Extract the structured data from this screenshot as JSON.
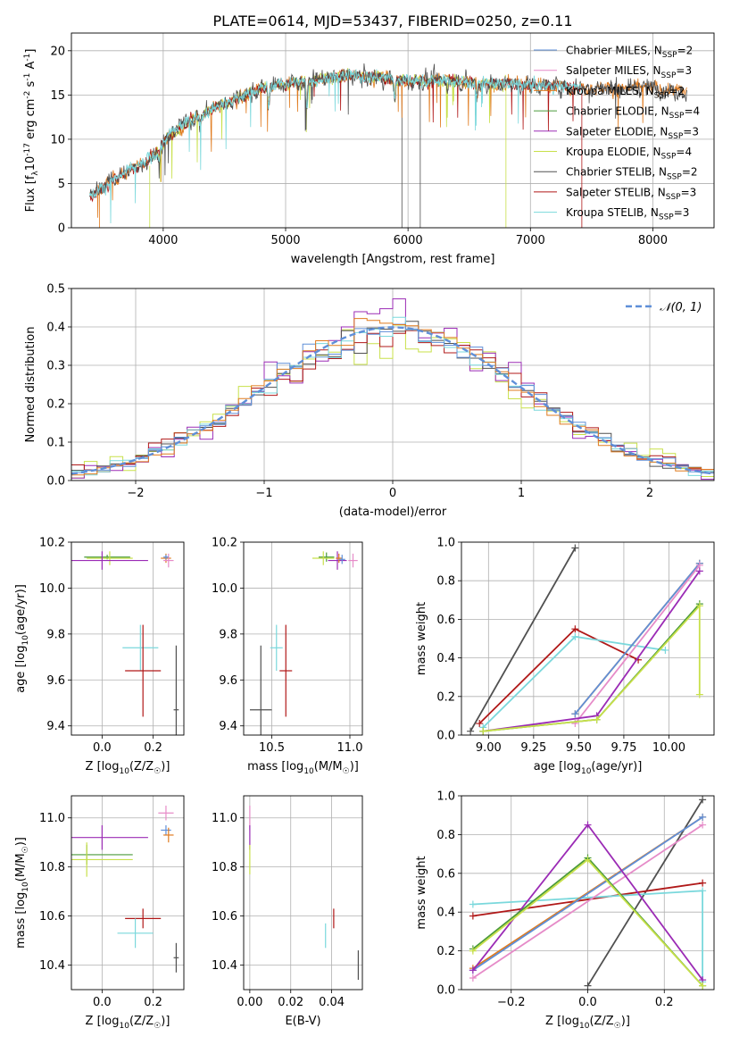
{
  "figure": {
    "title": "PLATE=0614, MJD=53437, FIBERID=0250, z=0.11"
  },
  "colors": {
    "Chabrier MILES": "#5f8fd8",
    "Salpeter MILES": "#e68bc8",
    "Kroupa MILES": "#e07b1f",
    "Chabrier ELODIE": "#4a9a3a",
    "Salpeter ELODIE": "#9b2bb5",
    "Kroupa ELODIE": "#c8e04a",
    "Chabrier STELIB": "#505050",
    "Salpeter STELIB": "#b01818",
    "Kroupa STELIB": "#7ad8dc",
    "normal": "#5f8fd8"
  },
  "chart_data": [
    {
      "id": "spectrum",
      "type": "line",
      "xlabel": "wavelength [Angstrom, rest frame]",
      "ylabel": "Flux [f$_\\lambda$10$^{-17}$ erg cm$^{-2}$ s$^{-1}$ A$^{-1}$]",
      "xlim": [
        3250,
        8500
      ],
      "ylim": [
        0,
        22
      ],
      "xticks": [
        4000,
        5000,
        6000,
        7000,
        8000
      ],
      "yticks": [
        0,
        5,
        10,
        15,
        20
      ],
      "grid": true,
      "legend_position": "right",
      "legend": [
        {
          "label": "Chabrier MILES, N$_{SSP}$=2",
          "model": "Chabrier MILES"
        },
        {
          "label": "Salpeter MILES, N$_{SSP}$=3",
          "model": "Salpeter MILES"
        },
        {
          "label": "Kroupa MILES, N$_{SSP}$=2",
          "model": "Kroupa MILES"
        },
        {
          "label": "Chabrier ELODIE, N$_{SSP}$=4",
          "model": "Chabrier ELODIE"
        },
        {
          "label": "Salpeter ELODIE, N$_{SSP}$=3",
          "model": "Salpeter ELODIE"
        },
        {
          "label": "Kroupa ELODIE, N$_{SSP}$=4",
          "model": "Kroupa ELODIE"
        },
        {
          "label": "Chabrier STELIB, N$_{SSP}$=2",
          "model": "Chabrier STELIB"
        },
        {
          "label": "Salpeter STELIB, N$_{SSP}$=3",
          "model": "Salpeter STELIB"
        },
        {
          "label": "Kroupa STELIB, N$_{SSP}$=3",
          "model": "Kroupa STELIB"
        }
      ],
      "continuum": [
        [
          3400,
          3.5
        ],
        [
          3600,
          5.5
        ],
        [
          3800,
          7.0
        ],
        [
          3950,
          8.5
        ],
        [
          4050,
          10.5
        ],
        [
          4200,
          12.0
        ],
        [
          4400,
          13.5
        ],
        [
          4600,
          14.5
        ],
        [
          4800,
          15.8
        ],
        [
          5000,
          16.3
        ],
        [
          5200,
          16.6
        ],
        [
          5500,
          17.2
        ],
        [
          5800,
          17.0
        ],
        [
          6000,
          16.6
        ],
        [
          6300,
          16.6
        ],
        [
          6600,
          16.3
        ],
        [
          7000,
          16.2
        ],
        [
          7500,
          15.8
        ],
        [
          8000,
          15.8
        ],
        [
          8280,
          15.3
        ]
      ],
      "absorption": [
        [
          3933,
          8.2
        ],
        [
          3968,
          7.6
        ],
        [
          4102,
          11.0
        ],
        [
          4304,
          11.6
        ],
        [
          4861,
          13.8
        ],
        [
          5175,
          13.6
        ],
        [
          5893,
          14.4
        ],
        [
          6563,
          15.1
        ]
      ],
      "artifacts": [
        {
          "x": 5950,
          "y0": 0,
          "y1": 16.5,
          "model": "Chabrier STELIB"
        },
        {
          "x": 6100,
          "y0": 0,
          "y1": 16.5,
          "model": "Chabrier STELIB"
        },
        {
          "x": 6800,
          "y0": 0,
          "y1": 16.0,
          "model": "Kroupa ELODIE"
        },
        {
          "x": 7420,
          "y0": 0,
          "y1": 15.5,
          "model": "Salpeter STELIB"
        },
        {
          "x": 3890,
          "y0": 0,
          "y1": 7.0,
          "model": "Kroupa ELODIE"
        },
        {
          "x": 3480,
          "y0": 0,
          "y1": 4.5,
          "model": "Kroupa MILES"
        }
      ],
      "series": [
        {
          "model": "Kroupa MILES",
          "xrange": [
            3400,
            8280
          ],
          "noise": 1.0
        },
        {
          "model": "Kroupa ELODIE",
          "xrange": [
            3900,
            6800
          ],
          "noise": 0.9
        },
        {
          "model": "Salpeter STELIB",
          "xrange": [
            3400,
            7420
          ],
          "noise": 0.8
        },
        {
          "model": "Chabrier STELIB",
          "xrange": [
            3400,
            8280
          ],
          "noise": 1.3
        },
        {
          "model": "Kroupa STELIB",
          "xrange": [
            3400,
            7420
          ],
          "noise": 0.9
        }
      ]
    },
    {
      "id": "residuals",
      "type": "bar",
      "xlabel": "(data-model)/error",
      "ylabel": "Normed distribution",
      "xlim": [
        -2.5,
        2.5
      ],
      "ylim": [
        0,
        0.5
      ],
      "xticks": [
        -2,
        -1,
        0,
        1,
        2
      ],
      "yticks": [
        0.0,
        0.1,
        0.2,
        0.3,
        0.4,
        0.5
      ],
      "grid": true,
      "legend_position": "top-right",
      "legend": [
        {
          "label": "$\\mathcal{N}(0, 1)$",
          "model": "normal"
        }
      ],
      "bins": {
        "start": -2.5,
        "width": 0.1,
        "count": 50
      },
      "normal_curve": {
        "mean": 0,
        "sigma": 1
      },
      "series": [
        {
          "model": "Kroupa ELODIE",
          "spread": 1.05,
          "jitter": 0.04
        },
        {
          "model": "Salpeter ELODIE",
          "spread": 0.98,
          "jitter": 0.035
        },
        {
          "model": "Chabrier STELIB",
          "spread": 1.02,
          "jitter": 0.025
        },
        {
          "model": "Salpeter STELIB",
          "spread": 1.06,
          "jitter": 0.03
        },
        {
          "model": "Kroupa STELIB",
          "spread": 1.0,
          "jitter": 0.03
        },
        {
          "model": "Chabrier MILES",
          "spread": 1.03,
          "jitter": 0.025
        },
        {
          "model": "Kroupa MILES",
          "spread": 0.99,
          "jitter": 0.025
        }
      ]
    },
    {
      "id": "age-vs-z",
      "type": "scatter",
      "xlabel": "Z [log$_{10}$(Z/Z$_\\odot$)]",
      "ylabel": "age  [log$_{10}$(age/yr)]",
      "xlim": [
        -0.12,
        0.32
      ],
      "ylim": [
        9.36,
        10.2
      ],
      "xticks": [
        0.0,
        0.2
      ],
      "xticklabels": [
        "0.0",
        "0.2"
      ],
      "yticks": [
        9.4,
        9.6,
        9.8,
        10.0,
        10.2
      ],
      "yticklabels": [
        "9.4",
        "9.6",
        "9.8",
        "10.0",
        "10.2"
      ],
      "grid": true,
      "points": [
        {
          "model": "Chabrier ELODIE",
          "x": 0.02,
          "y": 10.135,
          "xerr": 0.09,
          "yerr": 0.01
        },
        {
          "model": "Kroupa ELODIE",
          "x": 0.03,
          "y": 10.13,
          "xerr": 0.09,
          "yerr": 0.03
        },
        {
          "model": "Salpeter ELODIE",
          "x": 0.0,
          "y": 10.12,
          "xerr": 0.18,
          "yerr": 0.04
        },
        {
          "model": "Kroupa MILES",
          "x": 0.25,
          "y": 10.13,
          "xerr": 0.02,
          "yerr": 0.02
        },
        {
          "model": "Salpeter MILES",
          "x": 0.26,
          "y": 10.12,
          "xerr": 0.02,
          "yerr": 0.03
        },
        {
          "model": "Chabrier MILES",
          "x": 0.25,
          "y": 10.135,
          "xerr": 0.01,
          "yerr": 0.01
        },
        {
          "model": "Kroupa STELIB",
          "x": 0.15,
          "y": 9.74,
          "xerr": 0.07,
          "yerr": 0.1
        },
        {
          "model": "Salpeter STELIB",
          "x": 0.16,
          "y": 9.64,
          "xerr": 0.07,
          "yerr": 0.2
        },
        {
          "model": "Chabrier STELIB",
          "x": 0.29,
          "y": 9.47,
          "xerr": 0.01,
          "yerr": 0.28
        }
      ]
    },
    {
      "id": "age-vs-mass",
      "type": "scatter",
      "xlabel": "mass [log$_{10}$(M/M$_\\odot$)]",
      "ylabel": "",
      "xlim": [
        10.32,
        11.08
      ],
      "ylim": [
        9.36,
        10.2
      ],
      "xticks": [
        10.5,
        11.0
      ],
      "xticklabels": [
        "10.5",
        "11.0"
      ],
      "yticks": [
        9.4,
        9.6,
        9.8,
        10.0,
        10.2
      ],
      "yticklabels": [
        "9.4",
        "9.6",
        "9.8",
        "10.0",
        "10.2"
      ],
      "grid": true,
      "points": [
        {
          "model": "Chabrier ELODIE",
          "x": 10.85,
          "y": 10.135,
          "xerr": 0.05,
          "yerr": 0.02
        },
        {
          "model": "Kroupa ELODIE",
          "x": 10.83,
          "y": 10.13,
          "xerr": 0.07,
          "yerr": 0.03
        },
        {
          "model": "Salpeter ELODIE",
          "x": 10.92,
          "y": 10.12,
          "xerr": 0.06,
          "yerr": 0.04
        },
        {
          "model": "Kroupa MILES",
          "x": 10.93,
          "y": 10.13,
          "xerr": 0.02,
          "yerr": 0.02
        },
        {
          "model": "Chabrier MILES",
          "x": 10.95,
          "y": 10.125,
          "xerr": 0.02,
          "yerr": 0.02
        },
        {
          "model": "Salpeter MILES",
          "x": 11.02,
          "y": 10.12,
          "xerr": 0.03,
          "yerr": 0.03
        },
        {
          "model": "Kroupa STELIB",
          "x": 10.53,
          "y": 9.74,
          "xerr": 0.04,
          "yerr": 0.1
        },
        {
          "model": "Salpeter STELIB",
          "x": 10.59,
          "y": 9.64,
          "xerr": 0.04,
          "yerr": 0.2
        },
        {
          "model": "Chabrier STELIB",
          "x": 10.43,
          "y": 9.47,
          "xerr": 0.07,
          "yerr": 0.28
        }
      ]
    },
    {
      "id": "weight-vs-age",
      "type": "line",
      "xlabel": "age  [log$_{10}$(age/yr)]",
      "ylabel": "mass weight",
      "xlim": [
        8.85,
        10.25
      ],
      "ylim": [
        0,
        1.0
      ],
      "xticks": [
        9.0,
        9.25,
        9.5,
        9.75,
        10.0
      ],
      "xticklabels": [
        "9.00",
        "9.25",
        "9.50",
        "9.75",
        "10.00"
      ],
      "yticks": [
        0,
        0.2,
        0.4,
        0.6,
        0.8,
        1.0
      ],
      "yticklabels": [
        "0.0",
        "0.2",
        "0.4",
        "0.6",
        "0.8",
        "1.0"
      ],
      "grid": true,
      "series": [
        {
          "model": "Chabrier STELIB",
          "points": [
            [
              8.9,
              0.02
            ],
            [
              9.48,
              0.97
            ]
          ]
        },
        {
          "model": "Salpeter STELIB",
          "points": [
            [
              8.95,
              0.06
            ],
            [
              9.48,
              0.55
            ],
            [
              9.83,
              0.39
            ]
          ]
        },
        {
          "model": "Kroupa STELIB",
          "points": [
            [
              8.97,
              0.04
            ],
            [
              9.48,
              0.51
            ],
            [
              9.98,
              0.44
            ]
          ]
        },
        {
          "model": "Kroupa MILES",
          "points": [
            [
              9.48,
              0.11
            ],
            [
              10.17,
              0.89
            ]
          ]
        },
        {
          "model": "Chabrier MILES",
          "points": [
            [
              9.48,
              0.11
            ],
            [
              10.17,
              0.89
            ]
          ]
        },
        {
          "model": "Salpeter MILES",
          "points": [
            [
              9.48,
              0.06
            ],
            [
              10.17,
              0.88
            ]
          ]
        },
        {
          "model": "Salpeter ELODIE",
          "points": [
            [
              8.97,
              0.02
            ],
            [
              9.6,
              0.1
            ],
            [
              10.17,
              0.85
            ]
          ]
        },
        {
          "model": "Chabrier ELODIE",
          "points": [
            [
              8.97,
              0.02
            ],
            [
              9.6,
              0.08
            ],
            [
              10.17,
              0.68
            ]
          ]
        },
        {
          "model": "Kroupa ELODIE",
          "points": [
            [
              8.97,
              0.02
            ],
            [
              9.6,
              0.08
            ],
            [
              10.17,
              0.67
            ],
            [
              10.17,
              0.21
            ]
          ]
        }
      ]
    },
    {
      "id": "mass-vs-z",
      "type": "scatter",
      "xlabel": "Z [log$_{10}$(Z/Z$_\\odot$)]",
      "ylabel": "mass [log$_{10}$(M/M$_\\odot$)]",
      "xlim": [
        -0.12,
        0.32
      ],
      "ylim": [
        10.3,
        11.09
      ],
      "xticks": [
        0.0,
        0.2
      ],
      "xticklabels": [
        "0.0",
        "0.2"
      ],
      "yticks": [
        10.4,
        10.6,
        10.8,
        11.0
      ],
      "yticklabels": [
        "10.4",
        "10.6",
        "10.8",
        "11.0"
      ],
      "grid": true,
      "points": [
        {
          "model": "Salpeter ELODIE",
          "x": 0.0,
          "y": 10.92,
          "xerr": 0.18,
          "yerr": 0.05
        },
        {
          "model": "Chabrier ELODIE",
          "x": -0.06,
          "y": 10.85,
          "xerr": 0.18,
          "yerr": 0.04
        },
        {
          "model": "Kroupa ELODIE",
          "x": -0.06,
          "y": 10.83,
          "xerr": 0.18,
          "yerr": 0.07
        },
        {
          "model": "Salpeter MILES",
          "x": 0.25,
          "y": 11.02,
          "xerr": 0.03,
          "yerr": 0.03
        },
        {
          "model": "Chabrier MILES",
          "x": 0.25,
          "y": 10.95,
          "xerr": 0.02,
          "yerr": 0.02
        },
        {
          "model": "Kroupa MILES",
          "x": 0.26,
          "y": 10.93,
          "xerr": 0.02,
          "yerr": 0.03
        },
        {
          "model": "Salpeter STELIB",
          "x": 0.16,
          "y": 10.59,
          "xerr": 0.07,
          "yerr": 0.04
        },
        {
          "model": "Kroupa STELIB",
          "x": 0.13,
          "y": 10.53,
          "xerr": 0.07,
          "yerr": 0.06
        },
        {
          "model": "Chabrier STELIB",
          "x": 0.29,
          "y": 10.43,
          "xerr": 0.01,
          "yerr": 0.06
        }
      ]
    },
    {
      "id": "mass-vs-ebv",
      "type": "scatter",
      "xlabel": "E(B-V)",
      "ylabel": "",
      "xlim": [
        -0.003,
        0.055
      ],
      "ylim": [
        10.3,
        11.09
      ],
      "xticks": [
        0.0,
        0.02,
        0.04
      ],
      "xticklabels": [
        "0.00",
        "0.02",
        "0.04"
      ],
      "yticks": [
        10.4,
        10.6,
        10.8,
        11.0
      ],
      "yticklabels": [
        "10.4",
        "10.6",
        "10.8",
        "11.0"
      ],
      "grid": true,
      "points": [
        {
          "model": "Salpeter MILES",
          "x": 0.0,
          "y": 11.0,
          "xerr": 0.0,
          "yerr": 0.05
        },
        {
          "model": "Salpeter ELODIE",
          "x": 0.0,
          "y": 10.92,
          "xerr": 0.0,
          "yerr": 0.05
        },
        {
          "model": "Kroupa ELODIE",
          "x": 0.0,
          "y": 10.83,
          "xerr": 0.0,
          "yerr": 0.06
        },
        {
          "model": "Kroupa STELIB",
          "x": 0.037,
          "y": 10.52,
          "xerr": 0.0,
          "yerr": 0.05
        },
        {
          "model": "Salpeter STELIB",
          "x": 0.041,
          "y": 10.59,
          "xerr": 0.0,
          "yerr": 0.04
        },
        {
          "model": "Chabrier STELIB",
          "x": 0.053,
          "y": 10.4,
          "xerr": 0.0,
          "yerr": 0.06
        }
      ]
    },
    {
      "id": "weight-vs-z",
      "type": "line",
      "xlabel": "Z [log$_{10}$(Z/Z$_\\odot$)]",
      "ylabel": "mass weight",
      "xlim": [
        -0.33,
        0.33
      ],
      "ylim": [
        0,
        1.0
      ],
      "xticks": [
        -0.2,
        0.0,
        0.2
      ],
      "xticklabels": [
        "−0.2",
        "0.0",
        "0.2"
      ],
      "yticks": [
        0,
        0.2,
        0.4,
        0.6,
        0.8,
        1.0
      ],
      "yticklabels": [
        "0.0",
        "0.2",
        "0.4",
        "0.6",
        "0.8",
        "1.0"
      ],
      "grid": true,
      "series": [
        {
          "model": "Chabrier STELIB",
          "points": [
            [
              0.0,
              0.02
            ],
            [
              0.3,
              0.98
            ]
          ]
        },
        {
          "model": "Salpeter STELIB",
          "points": [
            [
              -0.3,
              0.38
            ],
            [
              0.3,
              0.55
            ]
          ]
        },
        {
          "model": "Kroupa STELIB",
          "points": [
            [
              -0.3,
              0.44
            ],
            [
              0.3,
              0.51
            ],
            [
              0.3,
              0.04
            ]
          ]
        },
        {
          "model": "Kroupa MILES",
          "points": [
            [
              -0.3,
              0.11
            ],
            [
              0.3,
              0.89
            ]
          ]
        },
        {
          "model": "Chabrier MILES",
          "points": [
            [
              -0.3,
              0.1
            ],
            [
              0.3,
              0.89
            ]
          ]
        },
        {
          "model": "Salpeter MILES",
          "points": [
            [
              -0.3,
              0.06
            ],
            [
              0.3,
              0.85
            ]
          ]
        },
        {
          "model": "Salpeter ELODIE",
          "points": [
            [
              -0.3,
              0.1
            ],
            [
              0.0,
              0.85
            ],
            [
              0.3,
              0.05
            ]
          ]
        },
        {
          "model": "Chabrier ELODIE",
          "points": [
            [
              -0.3,
              0.21
            ],
            [
              0.0,
              0.68
            ],
            [
              0.3,
              0.02
            ]
          ]
        },
        {
          "model": "Kroupa ELODIE",
          "points": [
            [
              -0.3,
              0.2
            ],
            [
              0.0,
              0.67
            ],
            [
              0.3,
              0.02
            ]
          ]
        }
      ]
    }
  ]
}
